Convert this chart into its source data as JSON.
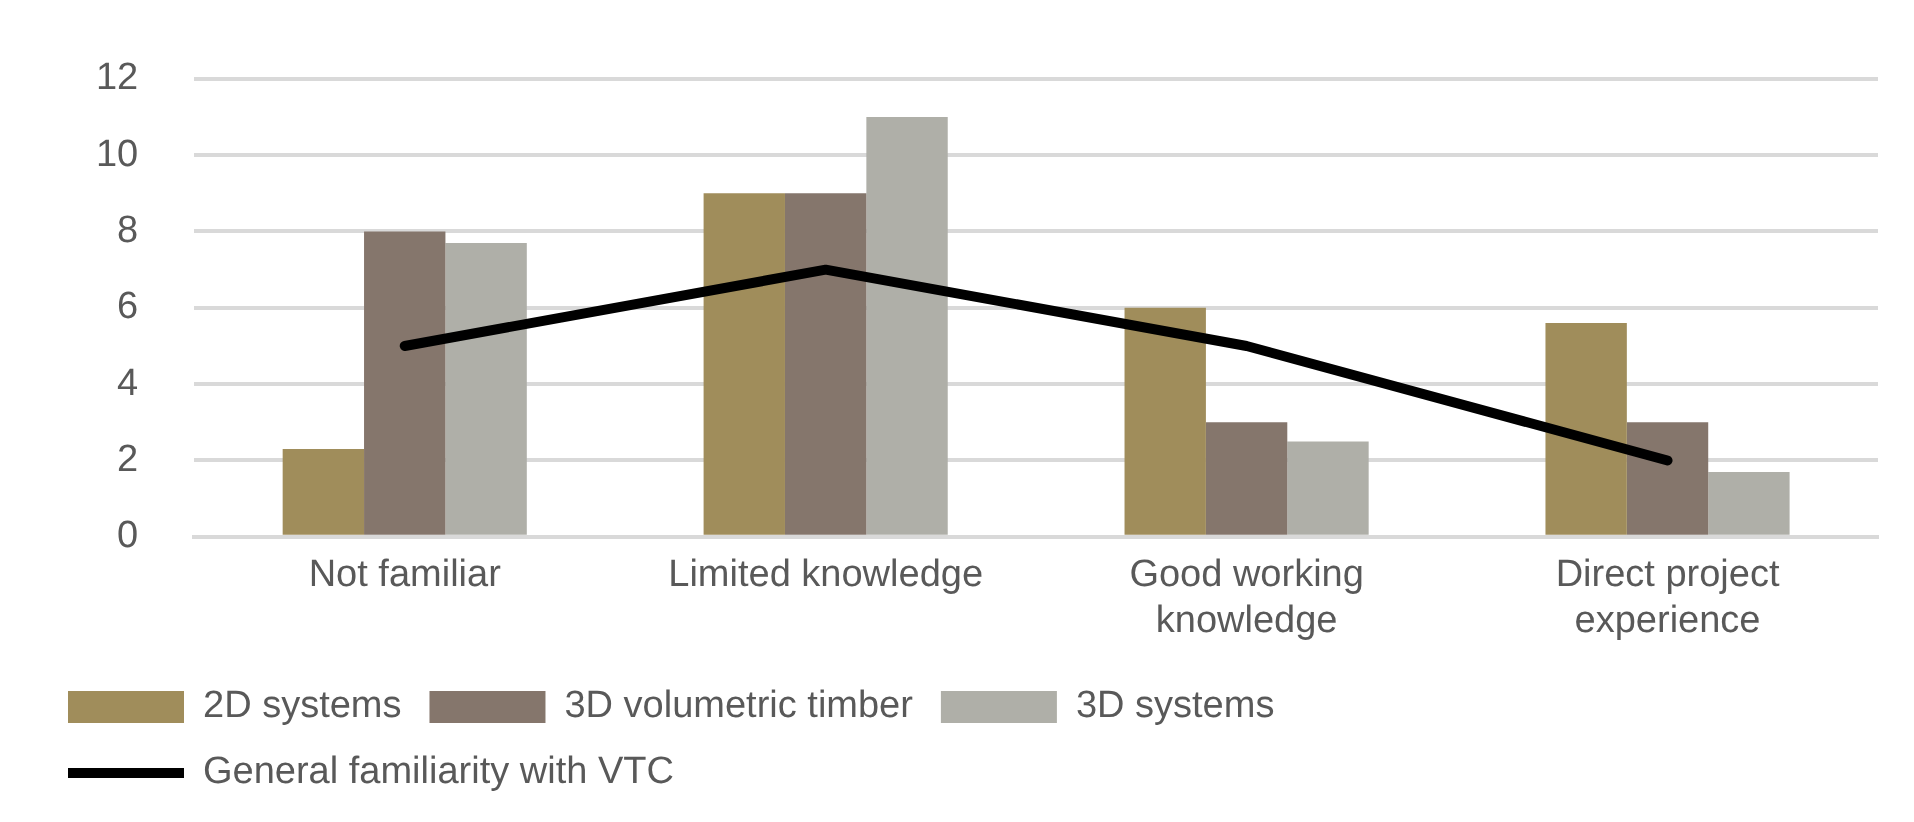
{
  "chart_data": {
    "type": "bar",
    "categories": [
      "Not familiar",
      "Limited knowledge",
      "Good working knowledge",
      "Direct project experience"
    ],
    "series": [
      {
        "name": "2D systems",
        "color": "#a08d5b",
        "values": [
          2.3,
          9,
          6,
          5.6
        ]
      },
      {
        "name": "3D volumetric timber",
        "color": "#85766c",
        "values": [
          8,
          9,
          3,
          3
        ]
      },
      {
        "name": "3D systems",
        "color": "#afafa8",
        "values": [
          7.7,
          11,
          2.5,
          1.7
        ]
      },
      {
        "name": "General familiarity with VTC",
        "type": "line",
        "color": "#000000",
        "values": [
          5,
          7,
          5,
          2
        ],
        "marker": "none"
      }
    ],
    "ylim": [
      0,
      12
    ],
    "yticks": [
      0,
      2,
      4,
      6,
      8,
      10,
      12
    ],
    "grid": "y",
    "legend": "bottom"
  }
}
